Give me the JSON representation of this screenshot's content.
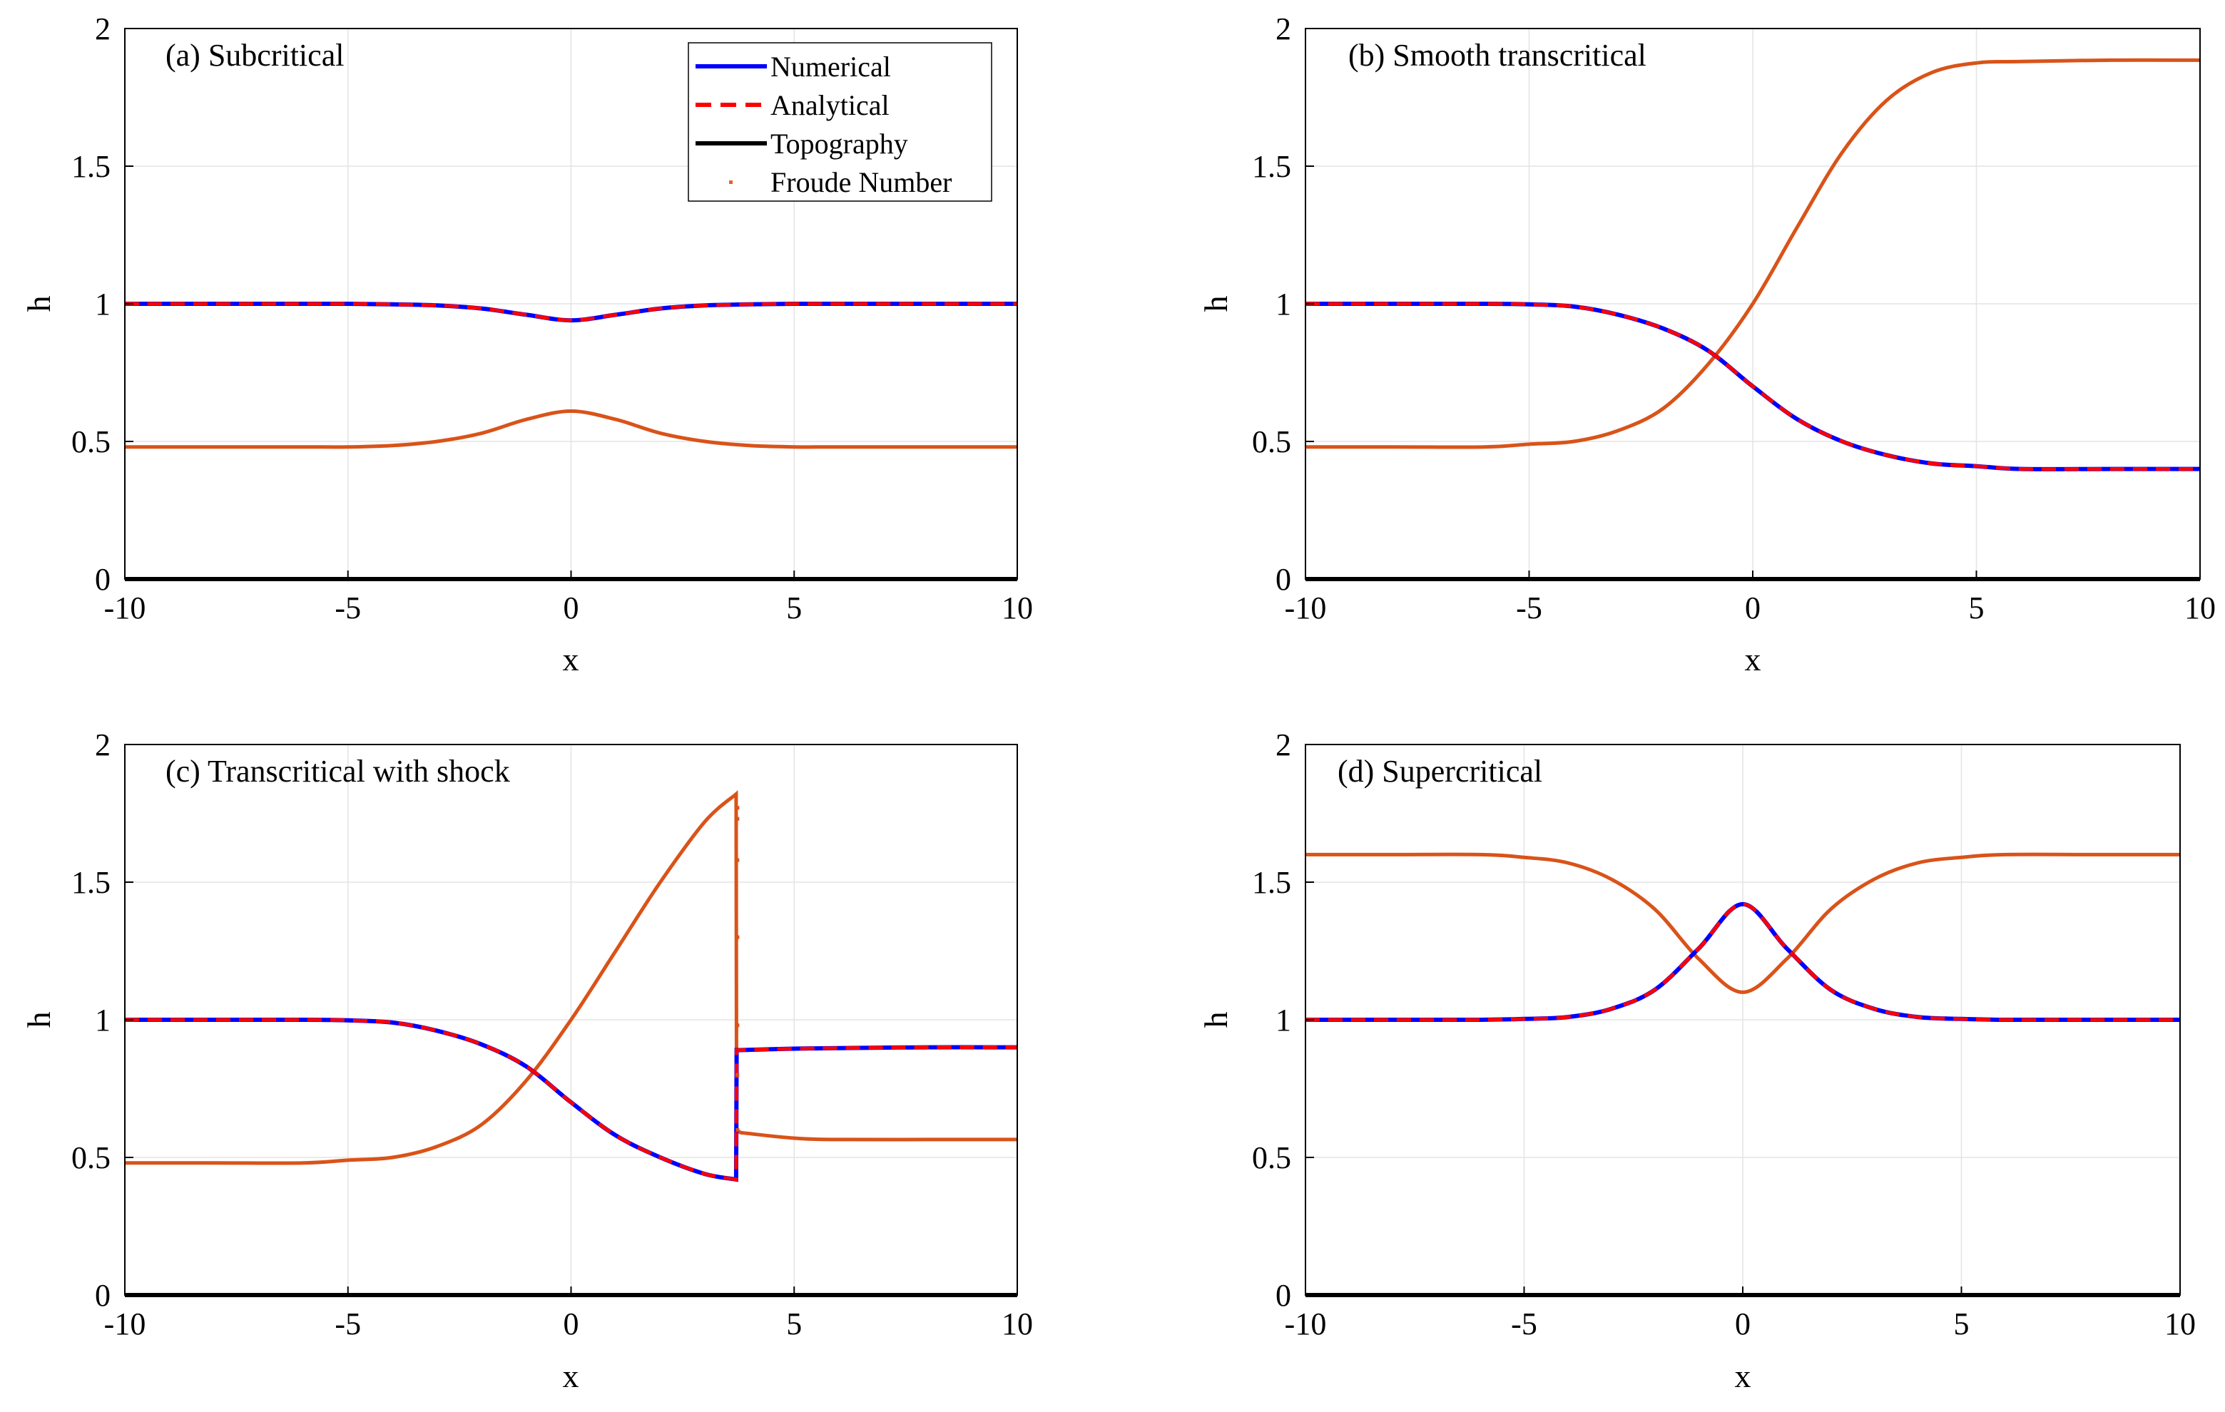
{
  "figure": {
    "ylabel": "h",
    "xlabel": "x"
  },
  "legend": {
    "entries": [
      {
        "label": "Numerical",
        "style": "solid",
        "color": "#0000ff"
      },
      {
        "label": "Analytical",
        "style": "dashed",
        "color": "#ff0000"
      },
      {
        "label": "Topography",
        "style": "solid",
        "color": "#000000"
      },
      {
        "label": "Froude Number",
        "style": "dot",
        "color": "#e2622a"
      }
    ]
  },
  "colors": {
    "numerical": "#0000ff",
    "analytical": "#ff0000",
    "topography": "#000000",
    "froude": "#d95319",
    "grid": "#e3e3e3"
  },
  "chart_data": [
    {
      "type": "line",
      "title": "(a) Subcritical",
      "xlabel": "x",
      "ylabel": "h",
      "xlim": [
        -10,
        10
      ],
      "ylim": [
        0,
        2
      ],
      "xticks": [
        "-10",
        "-5",
        "0",
        "5",
        "10"
      ],
      "yticks": [
        "0",
        "0.5",
        "1",
        "1.5",
        "2"
      ],
      "grid": true,
      "x": [
        -10,
        -8,
        -6,
        -5,
        -4,
        -3,
        -2,
        -1,
        0,
        1,
        2,
        3,
        4,
        5,
        6,
        8,
        10
      ],
      "series": [
        {
          "name": "Numerical",
          "values": [
            1.0,
            1.0,
            1.0,
            1.0,
            0.998,
            0.994,
            0.983,
            0.96,
            0.94,
            0.96,
            0.983,
            0.994,
            0.998,
            1.0,
            1.0,
            1.0,
            1.0
          ]
        },
        {
          "name": "Analytical",
          "values": [
            1.0,
            1.0,
            1.0,
            1.0,
            0.998,
            0.994,
            0.983,
            0.96,
            0.94,
            0.96,
            0.983,
            0.994,
            0.998,
            1.0,
            1.0,
            1.0,
            1.0
          ]
        },
        {
          "name": "Topography",
          "values": [
            0,
            0,
            0,
            0,
            0,
            0,
            0,
            0,
            0,
            0,
            0,
            0,
            0,
            0,
            0,
            0,
            0
          ]
        },
        {
          "name": "Froude Number",
          "values": [
            0.48,
            0.48,
            0.48,
            0.48,
            0.485,
            0.5,
            0.53,
            0.58,
            0.61,
            0.58,
            0.53,
            0.5,
            0.485,
            0.48,
            0.48,
            0.48,
            0.48
          ]
        }
      ]
    },
    {
      "type": "line",
      "title": "(b) Smooth transcritical",
      "xlabel": "x",
      "ylabel": "h",
      "xlim": [
        -10,
        10
      ],
      "ylim": [
        0,
        2
      ],
      "xticks": [
        "-10",
        "-5",
        "0",
        "5",
        "10"
      ],
      "yticks": [
        "0",
        "0.5",
        "1",
        "1.5",
        "2"
      ],
      "grid": true,
      "x": [
        -10,
        -8,
        -6,
        -5,
        -4,
        -3,
        -2,
        -1,
        0,
        1,
        2,
        3,
        4,
        5,
        6,
        8,
        10
      ],
      "series": [
        {
          "name": "Numerical",
          "values": [
            1.0,
            1.0,
            1.0,
            0.998,
            0.99,
            0.96,
            0.91,
            0.83,
            0.7,
            0.58,
            0.5,
            0.45,
            0.42,
            0.41,
            0.4,
            0.4,
            0.4
          ]
        },
        {
          "name": "Analytical",
          "values": [
            1.0,
            1.0,
            1.0,
            0.998,
            0.99,
            0.96,
            0.91,
            0.83,
            0.7,
            0.58,
            0.5,
            0.45,
            0.42,
            0.41,
            0.4,
            0.4,
            0.4
          ]
        },
        {
          "name": "Topography",
          "values": [
            0,
            0,
            0,
            0,
            0,
            0,
            0,
            0,
            0,
            0,
            0,
            0,
            0,
            0,
            0,
            0,
            0
          ]
        },
        {
          "name": "Froude Number",
          "values": [
            0.48,
            0.48,
            0.48,
            0.49,
            0.5,
            0.54,
            0.62,
            0.78,
            1.0,
            1.28,
            1.55,
            1.74,
            1.84,
            1.875,
            1.88,
            1.885,
            1.885
          ]
        }
      ]
    },
    {
      "type": "line",
      "title": "(c) Transcritical with shock",
      "xlabel": "x",
      "ylabel": "h",
      "xlim": [
        -10,
        10
      ],
      "ylim": [
        0,
        2
      ],
      "xticks": [
        "-10",
        "-5",
        "0",
        "5",
        "10"
      ],
      "yticks": [
        "0",
        "0.5",
        "1",
        "1.5",
        "2"
      ],
      "grid": true,
      "x": [
        -10,
        -8,
        -6,
        -5,
        -4,
        -3,
        -2,
        -1,
        0,
        1,
        2,
        3,
        3.7,
        3.71,
        3.8,
        5,
        6,
        8,
        10
      ],
      "series": [
        {
          "name": "Numerical",
          "values": [
            1.0,
            1.0,
            1.0,
            0.998,
            0.99,
            0.96,
            0.91,
            0.83,
            0.7,
            0.58,
            0.5,
            0.44,
            0.42,
            0.89,
            0.89,
            0.895,
            0.897,
            0.9,
            0.9
          ]
        },
        {
          "name": "Analytical",
          "values": [
            1.0,
            1.0,
            1.0,
            0.998,
            0.99,
            0.96,
            0.91,
            0.83,
            0.7,
            0.58,
            0.5,
            0.44,
            0.42,
            0.89,
            0.89,
            0.895,
            0.897,
            0.9,
            0.9
          ]
        },
        {
          "name": "Topography",
          "values": [
            0,
            0,
            0,
            0,
            0,
            0,
            0,
            0,
            0,
            0,
            0,
            0,
            0,
            0,
            0,
            0,
            0,
            0,
            0
          ]
        },
        {
          "name": "Froude Number",
          "values": [
            0.48,
            0.48,
            0.48,
            0.49,
            0.5,
            0.54,
            0.62,
            0.78,
            1.0,
            1.25,
            1.5,
            1.72,
            1.82,
            0.6,
            0.59,
            0.57,
            0.565,
            0.565,
            0.565
          ]
        }
      ],
      "shock_points": {
        "x": 3.73,
        "froude": [
          1.77,
          1.73,
          1.58,
          1.3,
          0.98,
          0.8,
          0.6
        ]
      }
    },
    {
      "type": "line",
      "title": "(d) Supercritical",
      "xlabel": "x",
      "ylabel": "h",
      "xlim": [
        -10,
        10
      ],
      "ylim": [
        0,
        2
      ],
      "xticks": [
        "-10",
        "-5",
        "0",
        "5",
        "10"
      ],
      "yticks": [
        "0",
        "0.5",
        "1",
        "1.5",
        "2"
      ],
      "grid": true,
      "x": [
        -10,
        -8,
        -6,
        -5,
        -4,
        -3,
        -2,
        -1,
        0,
        1,
        2,
        3,
        4,
        5,
        6,
        8,
        10
      ],
      "series": [
        {
          "name": "Numerical",
          "values": [
            1.0,
            1.0,
            1.0,
            1.003,
            1.01,
            1.04,
            1.11,
            1.26,
            1.42,
            1.26,
            1.11,
            1.04,
            1.01,
            1.003,
            1.0,
            1.0,
            1.0
          ]
        },
        {
          "name": "Analytical",
          "values": [
            1.0,
            1.0,
            1.0,
            1.003,
            1.01,
            1.04,
            1.11,
            1.26,
            1.42,
            1.26,
            1.11,
            1.04,
            1.01,
            1.003,
            1.0,
            1.0,
            1.0
          ]
        },
        {
          "name": "Topography",
          "values": [
            0,
            0,
            0,
            0,
            0,
            0,
            0,
            0,
            0,
            0,
            0,
            0,
            0,
            0,
            0,
            0,
            0
          ]
        },
        {
          "name": "Froude Number",
          "values": [
            1.6,
            1.6,
            1.6,
            1.59,
            1.57,
            1.51,
            1.4,
            1.22,
            1.1,
            1.22,
            1.4,
            1.51,
            1.57,
            1.59,
            1.6,
            1.6,
            1.6
          ]
        }
      ]
    }
  ]
}
